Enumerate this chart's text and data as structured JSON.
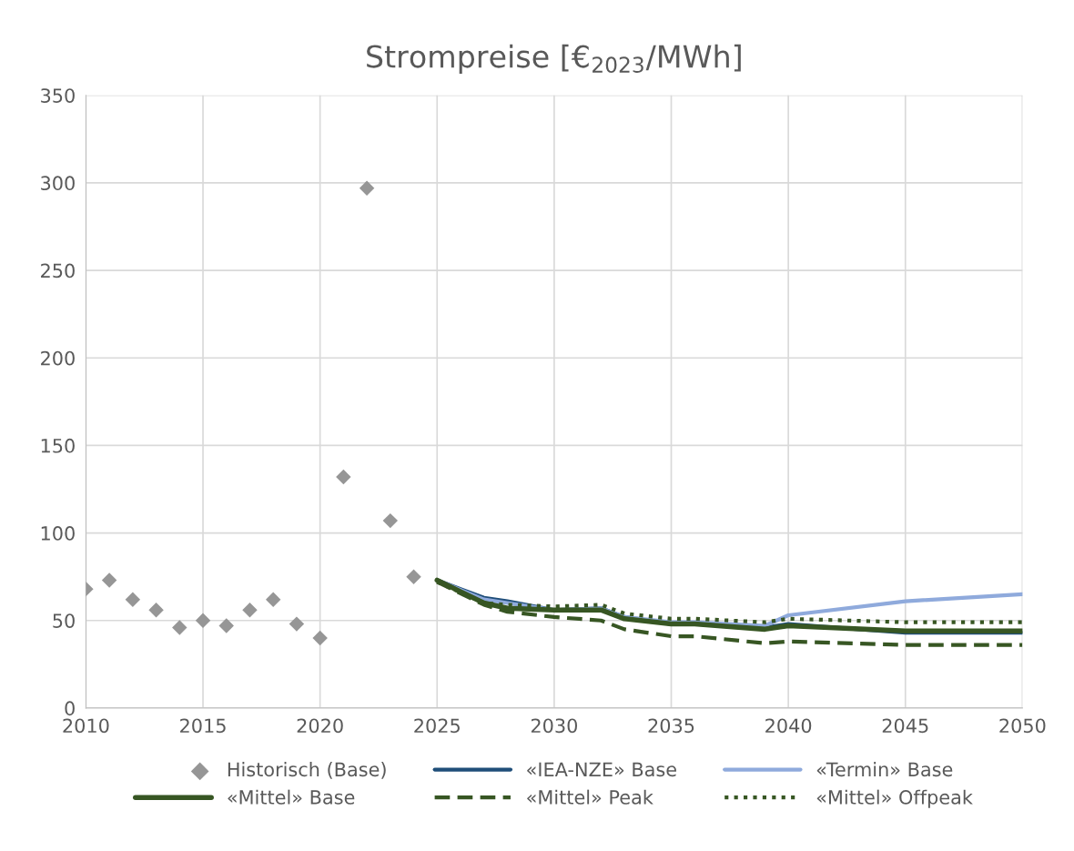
{
  "chart_data": {
    "type": "line",
    "title": "Strompreise [€$_{2023}$/MWh]",
    "xlim": [
      2010,
      2050
    ],
    "xticks": [
      2010,
      2015,
      2020,
      2025,
      2030,
      2035,
      2040,
      2045,
      2050
    ],
    "ylim": [
      0,
      350
    ],
    "yticks": [
      0,
      50,
      100,
      150,
      200,
      250,
      300,
      350
    ],
    "grid": true,
    "legend": "bottom",
    "series": [
      {
        "name": "Historisch (Base)",
        "type": "scatter",
        "marker": "diamond",
        "color": "#969696",
        "x": [
          2010,
          2011,
          2012,
          2013,
          2014,
          2015,
          2016,
          2017,
          2018,
          2019,
          2020,
          2021,
          2022,
          2023,
          2024
        ],
        "values": [
          68,
          73,
          62,
          56,
          46,
          50,
          47,
          56,
          62,
          48,
          40,
          132,
          297,
          107,
          75
        ]
      },
      {
        "name": "«IEA-NZE» Base",
        "line_style": "solid",
        "color": "#1f4e79",
        "x": [
          2025,
          2027,
          2028,
          2030,
          2032,
          2033,
          2035,
          2036,
          2039,
          2040,
          2045,
          2050
        ],
        "values": [
          73,
          63,
          61,
          56,
          57,
          52,
          48,
          48,
          46,
          48,
          43,
          43
        ]
      },
      {
        "name": "«Termin» Base",
        "line_style": "solid",
        "color": "#8faadc",
        "x": [
          2025,
          2027,
          2028,
          2030,
          2032,
          2033,
          2035,
          2036,
          2039,
          2040,
          2045,
          2050
        ],
        "values": [
          73,
          62,
          60,
          56,
          57,
          52,
          49,
          49,
          47,
          53,
          61,
          65
        ]
      },
      {
        "name": "«Mittel» Base",
        "line_style": "solid",
        "color": "#375623",
        "x": [
          2025,
          2027,
          2028,
          2030,
          2032,
          2033,
          2035,
          2036,
          2039,
          2040,
          2045,
          2050
        ],
        "values": [
          73,
          60,
          57,
          56,
          56,
          51,
          48,
          48,
          45,
          47,
          44,
          44
        ]
      },
      {
        "name": "«Mittel» Peak",
        "line_style": "dashed",
        "color": "#375623",
        "x": [
          2025,
          2027,
          2028,
          2030,
          2032,
          2033,
          2035,
          2036,
          2039,
          2040,
          2045,
          2050
        ],
        "values": [
          72,
          59,
          55,
          52,
          50,
          45,
          41,
          41,
          37,
          38,
          36,
          36
        ]
      },
      {
        "name": "«Mittel» Offpeak",
        "line_style": "dotted",
        "color": "#375623",
        "x": [
          2025,
          2027,
          2028,
          2030,
          2032,
          2033,
          2035,
          2036,
          2039,
          2040,
          2045,
          2050
        ],
        "values": [
          72,
          60,
          59,
          58,
          59,
          54,
          51,
          51,
          49,
          51,
          49,
          49
        ]
      }
    ]
  }
}
